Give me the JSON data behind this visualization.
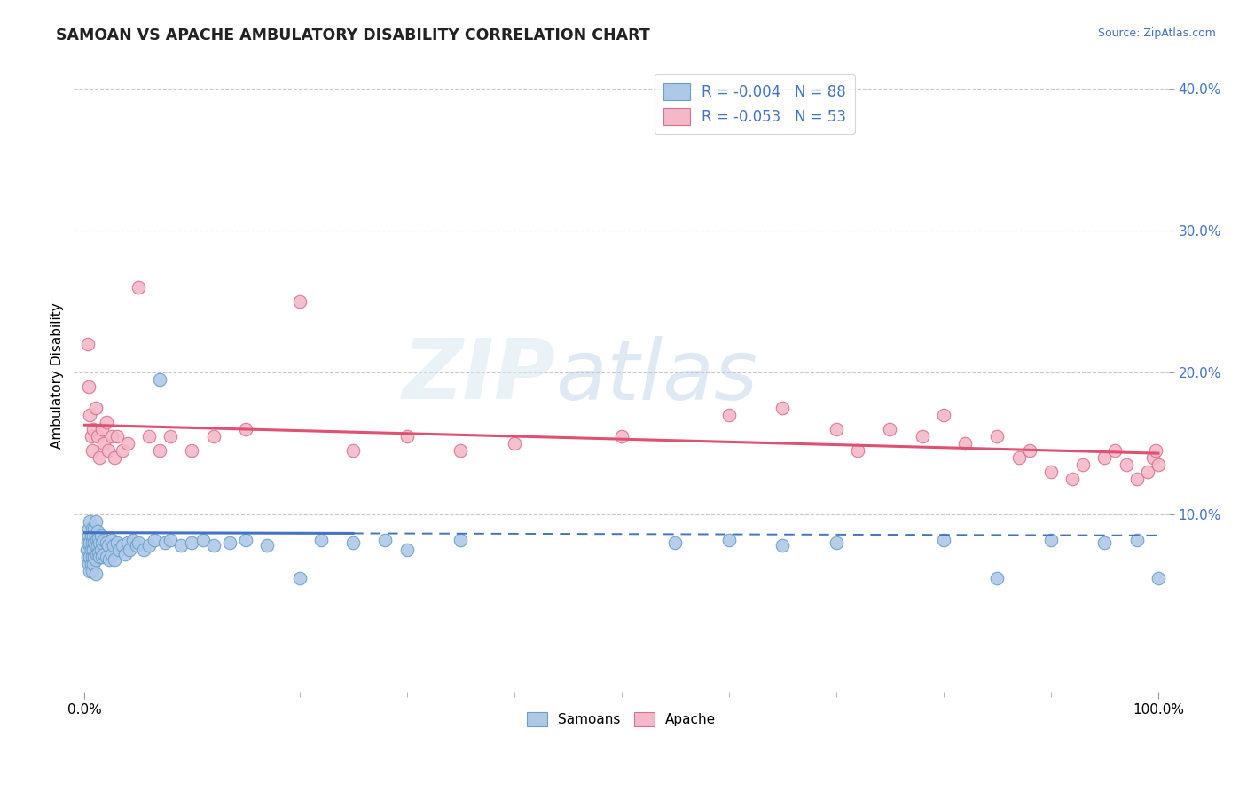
{
  "title": "SAMOAN VS APACHE AMBULATORY DISABILITY CORRELATION CHART",
  "source_text": "Source: ZipAtlas.com",
  "ylabel": "Ambulatory Disability",
  "background_color": "#ffffff",
  "grid_color": "#c8c8c8",
  "samoan_color": "#aec9e8",
  "samoan_edge_color": "#6a9fc8",
  "apache_color": "#f4b8c8",
  "apache_edge_color": "#d87090",
  "trend_samoan_color": "#4472c4",
  "trend_apache_color": "#e05070",
  "legend_label1": "R = -0.004   N = 88",
  "legend_label2": "R = -0.053   N = 53",
  "ytick_vals": [
    0.1,
    0.2,
    0.3,
    0.4
  ],
  "ytick_labels": [
    "10.0%",
    "20.0%",
    "30.0%",
    "40.0%"
  ],
  "xlim": [
    -0.01,
    1.01
  ],
  "ylim": [
    -0.025,
    0.42
  ],
  "samoan_x": [
    0.002,
    0.003,
    0.003,
    0.004,
    0.004,
    0.004,
    0.005,
    0.005,
    0.005,
    0.005,
    0.006,
    0.006,
    0.006,
    0.007,
    0.007,
    0.007,
    0.007,
    0.008,
    0.008,
    0.008,
    0.009,
    0.009,
    0.009,
    0.01,
    0.01,
    0.01,
    0.01,
    0.01,
    0.011,
    0.011,
    0.012,
    0.012,
    0.013,
    0.013,
    0.014,
    0.014,
    0.015,
    0.015,
    0.016,
    0.016,
    0.018,
    0.018,
    0.02,
    0.02,
    0.022,
    0.023,
    0.025,
    0.025,
    0.027,
    0.028,
    0.03,
    0.032,
    0.035,
    0.038,
    0.04,
    0.042,
    0.045,
    0.048,
    0.05,
    0.055,
    0.06,
    0.065,
    0.07,
    0.075,
    0.08,
    0.09,
    0.1,
    0.11,
    0.12,
    0.135,
    0.15,
    0.17,
    0.2,
    0.22,
    0.25,
    0.28,
    0.3,
    0.35,
    0.55,
    0.6,
    0.65,
    0.7,
    0.8,
    0.85,
    0.9,
    0.95,
    0.98,
    1.0
  ],
  "samoan_y": [
    0.075,
    0.08,
    0.07,
    0.085,
    0.09,
    0.065,
    0.095,
    0.08,
    0.07,
    0.06,
    0.085,
    0.075,
    0.065,
    0.09,
    0.08,
    0.07,
    0.06,
    0.085,
    0.075,
    0.065,
    0.09,
    0.08,
    0.07,
    0.095,
    0.085,
    0.078,
    0.068,
    0.058,
    0.082,
    0.072,
    0.088,
    0.078,
    0.083,
    0.073,
    0.08,
    0.07,
    0.085,
    0.075,
    0.08,
    0.07,
    0.082,
    0.072,
    0.08,
    0.07,
    0.078,
    0.068,
    0.082,
    0.072,
    0.078,
    0.068,
    0.08,
    0.075,
    0.078,
    0.072,
    0.08,
    0.075,
    0.082,
    0.078,
    0.08,
    0.075,
    0.078,
    0.082,
    0.195,
    0.08,
    0.082,
    0.078,
    0.08,
    0.082,
    0.078,
    0.08,
    0.082,
    0.078,
    0.055,
    0.082,
    0.08,
    0.082,
    0.075,
    0.082,
    0.08,
    0.082,
    0.078,
    0.08,
    0.082,
    0.055,
    0.082,
    0.08,
    0.082,
    0.055
  ],
  "apache_x": [
    0.003,
    0.004,
    0.005,
    0.006,
    0.007,
    0.008,
    0.01,
    0.012,
    0.014,
    0.016,
    0.018,
    0.02,
    0.022,
    0.025,
    0.028,
    0.03,
    0.035,
    0.04,
    0.05,
    0.06,
    0.07,
    0.08,
    0.1,
    0.12,
    0.15,
    0.2,
    0.25,
    0.3,
    0.35,
    0.4,
    0.5,
    0.6,
    0.65,
    0.7,
    0.72,
    0.75,
    0.78,
    0.8,
    0.82,
    0.85,
    0.87,
    0.88,
    0.9,
    0.92,
    0.93,
    0.95,
    0.96,
    0.97,
    0.98,
    0.99,
    0.995,
    0.998,
    1.0
  ],
  "apache_y": [
    0.22,
    0.19,
    0.17,
    0.155,
    0.145,
    0.16,
    0.175,
    0.155,
    0.14,
    0.16,
    0.15,
    0.165,
    0.145,
    0.155,
    0.14,
    0.155,
    0.145,
    0.15,
    0.26,
    0.155,
    0.145,
    0.155,
    0.145,
    0.155,
    0.16,
    0.25,
    0.145,
    0.155,
    0.145,
    0.15,
    0.155,
    0.17,
    0.175,
    0.16,
    0.145,
    0.16,
    0.155,
    0.17,
    0.15,
    0.155,
    0.14,
    0.145,
    0.13,
    0.125,
    0.135,
    0.14,
    0.145,
    0.135,
    0.125,
    0.13,
    0.14,
    0.145,
    0.135
  ]
}
